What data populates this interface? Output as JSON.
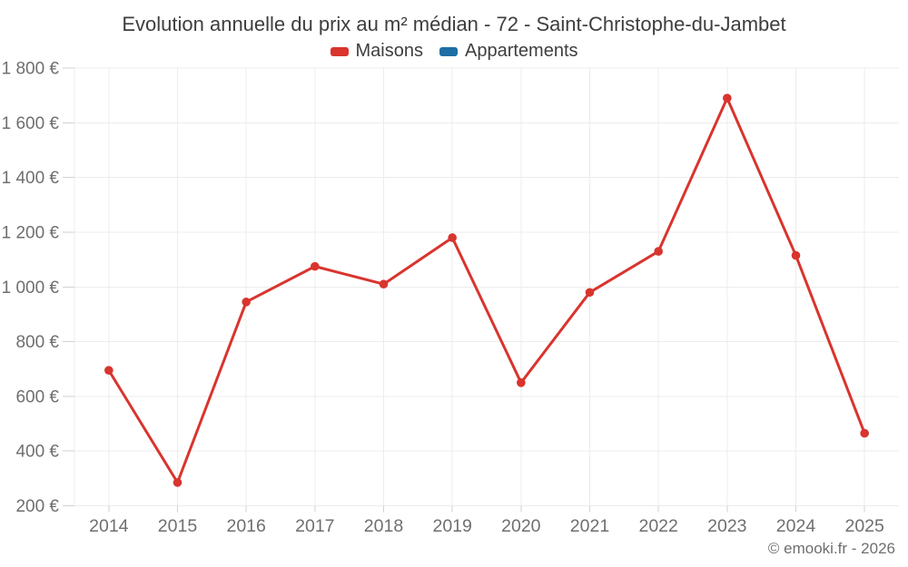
{
  "header": {
    "title": "Evolution annuelle du prix au m² médian - 72 - Saint-Christophe-du-Jambet"
  },
  "legend": {
    "items": [
      {
        "label": "Maisons",
        "color": "#d9342e"
      },
      {
        "label": "Appartements",
        "color": "#1c6ea4"
      }
    ]
  },
  "footer": {
    "credit": "© emooki.fr - 2026"
  },
  "chart_data": {
    "type": "line",
    "title": "Evolution annuelle du prix au m² médian - 72 - Saint-Christophe-du-Jambet",
    "categories": [
      "2014",
      "2015",
      "2016",
      "2017",
      "2018",
      "2019",
      "2020",
      "2021",
      "2022",
      "2023",
      "2024",
      "2025"
    ],
    "series": [
      {
        "name": "Maisons",
        "color": "#d9342e",
        "values": [
          695,
          285,
          945,
          1075,
          1010,
          1180,
          650,
          980,
          1130,
          1690,
          1115,
          465
        ]
      },
      {
        "name": "Appartements",
        "color": "#1c6ea4",
        "values": []
      }
    ],
    "xlabel": "",
    "ylabel": "",
    "ylim": [
      200,
      1800
    ],
    "ytick_step": 200,
    "ytick_suffix": " €",
    "grid": true,
    "legend_position": "top"
  }
}
